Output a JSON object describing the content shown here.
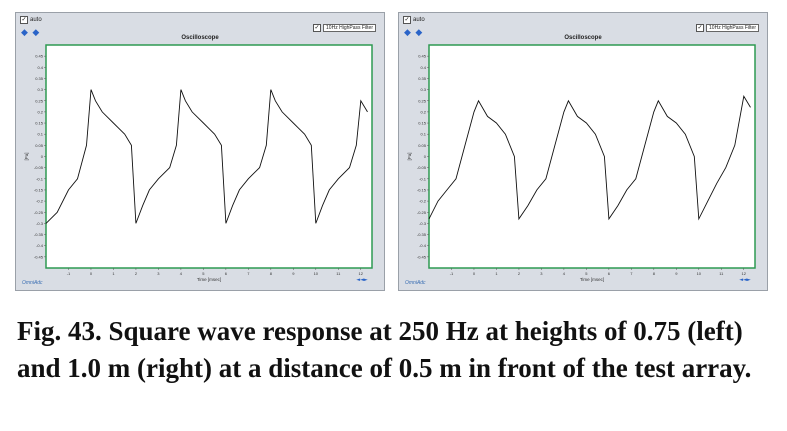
{
  "left_panel": {
    "auto_label": "auto",
    "filter_label": "10Hz HighPass Filter",
    "title": "Oscilloscope",
    "ylabel": "[Pa]",
    "xlabel": "Time [msec]",
    "footer": "OmniAdc",
    "zoom_icon": "zoom-icon"
  },
  "right_panel": {
    "auto_label": "auto",
    "filter_label": "10Hz HighPass Filter",
    "title": "Oscilloscope",
    "ylabel": "[Pa]",
    "xlabel": "Time [msec]",
    "footer": "OmniAdc",
    "zoom_icon": "zoom-icon"
  },
  "caption": "Fig. 43. Square wave response at 250 Hz at heights of 0.75 (left) and 1.0 m (right) at a distance of 0.5 m in front of the test array.",
  "chart_data": [
    {
      "type": "line",
      "title": "Oscilloscope",
      "xlabel": "Time [msec]",
      "ylabel": "[Pa]",
      "xlim": [
        -2,
        12.5
      ],
      "ylim": [
        -0.5,
        0.5
      ],
      "y_ticks": [
        "0.45",
        "0.4",
        "0.35",
        "0.3",
        "0.25",
        "0.2",
        "0.15",
        "0.1",
        "0.05",
        "0",
        "-0.05",
        "-0.1",
        "-0.15",
        "-0.2",
        "-0.25",
        "-0.3",
        "-0.35",
        "-0.4",
        "-0.45"
      ],
      "x_ticks": [
        "-1",
        "0",
        "1",
        "2",
        "3",
        "4",
        "5",
        "6",
        "7",
        "8",
        "9",
        "10",
        "11",
        "12"
      ],
      "series": [
        {
          "x": [
            -2,
            -1.5,
            -1,
            -0.6,
            -0.2,
            0,
            0.2,
            0.5,
            1,
            1.5,
            1.8,
            2,
            2.3,
            2.6,
            3,
            3.5,
            3.8,
            4,
            4.2,
            4.5,
            5,
            5.5,
            5.8,
            6,
            6.3,
            6.6,
            7,
            7.5,
            7.8,
            8,
            8.2,
            8.5,
            9,
            9.5,
            9.8,
            10,
            10.3,
            10.6,
            11,
            11.5,
            11.8,
            12,
            12.3
          ],
          "y": [
            -0.3,
            -0.25,
            -0.15,
            -0.1,
            0.05,
            0.3,
            0.25,
            0.2,
            0.15,
            0.1,
            0.05,
            -0.3,
            -0.22,
            -0.15,
            -0.1,
            -0.05,
            0.05,
            0.3,
            0.25,
            0.2,
            0.15,
            0.1,
            0.05,
            -0.3,
            -0.22,
            -0.15,
            -0.1,
            -0.05,
            0.05,
            0.3,
            0.25,
            0.2,
            0.15,
            0.1,
            0.05,
            -0.3,
            -0.22,
            -0.15,
            -0.1,
            -0.05,
            0.05,
            0.25,
            0.2
          ]
        }
      ]
    },
    {
      "type": "line",
      "title": "Oscilloscope",
      "xlabel": "Time [msec]",
      "ylabel": "[Pa]",
      "xlim": [
        -2,
        12.5
      ],
      "ylim": [
        -0.5,
        0.5
      ],
      "y_ticks": [
        "0.45",
        "0.4",
        "0.35",
        "0.3",
        "0.25",
        "0.2",
        "0.15",
        "0.1",
        "0.05",
        "0",
        "-0.05",
        "-0.1",
        "-0.15",
        "-0.2",
        "-0.25",
        "-0.3",
        "-0.35",
        "-0.4",
        "-0.45"
      ],
      "x_ticks": [
        "-1",
        "0",
        "1",
        "2",
        "3",
        "4",
        "5",
        "6",
        "7",
        "8",
        "9",
        "10",
        "11",
        "12"
      ],
      "series": [
        {
          "x": [
            -2,
            -1.6,
            -1.2,
            -0.8,
            -0.4,
            0,
            0.2,
            0.6,
            1,
            1.4,
            1.8,
            2,
            2.4,
            2.8,
            3.2,
            3.6,
            4,
            4.2,
            4.6,
            5,
            5.4,
            5.8,
            6,
            6.4,
            6.8,
            7.2,
            7.6,
            8,
            8.2,
            8.6,
            9,
            9.4,
            9.8,
            10,
            10.4,
            10.8,
            11.2,
            11.6,
            12,
            12.3
          ],
          "y": [
            -0.28,
            -0.2,
            -0.15,
            -0.1,
            0.05,
            0.2,
            0.25,
            0.18,
            0.15,
            0.1,
            0,
            -0.28,
            -0.22,
            -0.15,
            -0.1,
            0.05,
            0.2,
            0.25,
            0.18,
            0.15,
            0.1,
            0,
            -0.28,
            -0.22,
            -0.15,
            -0.1,
            0.05,
            0.2,
            0.25,
            0.18,
            0.15,
            0.1,
            0,
            -0.28,
            -0.2,
            -0.12,
            -0.05,
            0.05,
            0.27,
            0.22
          ]
        }
      ]
    }
  ]
}
